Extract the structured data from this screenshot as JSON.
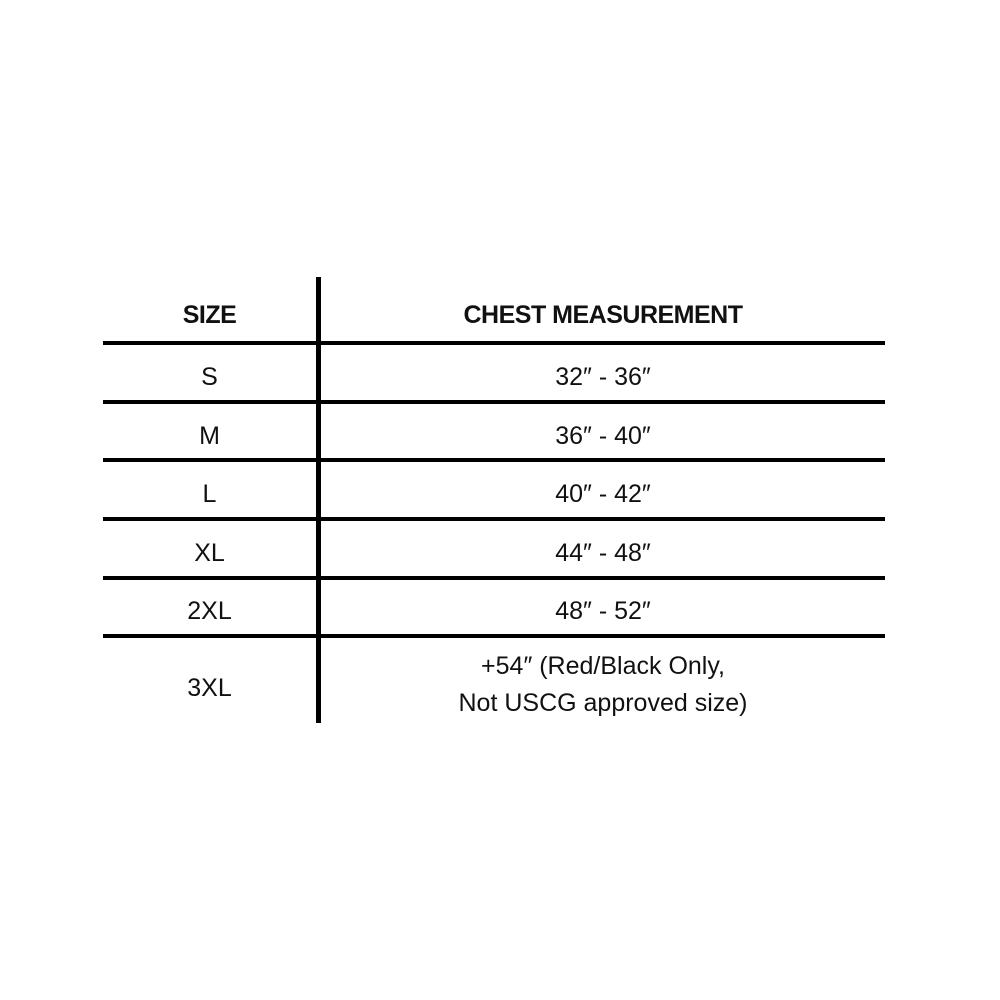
{
  "table": {
    "headers": [
      "SIZE",
      "CHEST MEASUREMENT"
    ],
    "rows": [
      {
        "size": "S",
        "chest": "32″ - 36″"
      },
      {
        "size": "M",
        "chest": "36″ - 40″"
      },
      {
        "size": "L",
        "chest": "40″ - 42″"
      },
      {
        "size": "XL",
        "chest": "44″ - 48″"
      },
      {
        "size": "2XL",
        "chest": "48″ - 52″"
      },
      {
        "size": "3XL",
        "chest": "+54″ (Red/Black Only,",
        "chest_line2": "Not USCG approved size)"
      }
    ]
  }
}
